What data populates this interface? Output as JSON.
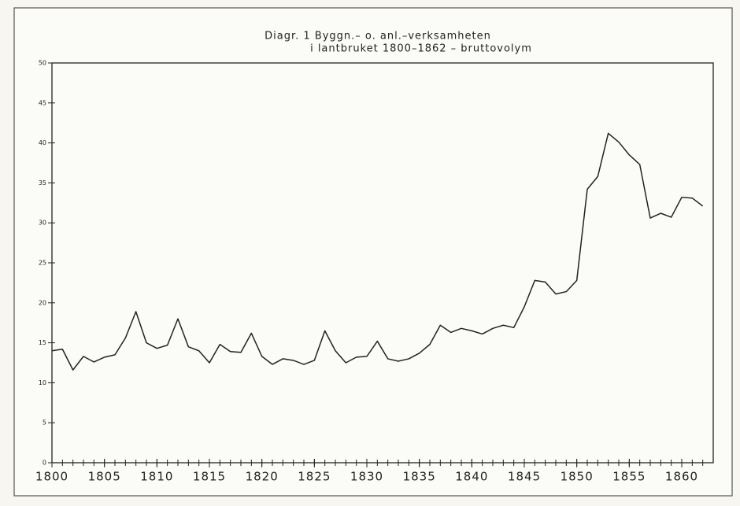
{
  "chart_data": {
    "type": "line",
    "title": "Diagr. 1   Byggn.– o. anl.–verksamheten",
    "subtitle": "i lantbruket 1800–1862 – bruttovolym",
    "x": [
      1800,
      1801,
      1802,
      1803,
      1804,
      1805,
      1806,
      1807,
      1808,
      1809,
      1810,
      1811,
      1812,
      1813,
      1814,
      1815,
      1816,
      1817,
      1818,
      1819,
      1820,
      1821,
      1822,
      1823,
      1824,
      1825,
      1826,
      1827,
      1828,
      1829,
      1830,
      1831,
      1832,
      1833,
      1834,
      1835,
      1836,
      1837,
      1838,
      1839,
      1840,
      1841,
      1842,
      1843,
      1844,
      1845,
      1846,
      1847,
      1848,
      1849,
      1850,
      1851,
      1852,
      1853,
      1854,
      1855,
      1856,
      1857,
      1858,
      1859,
      1860,
      1861,
      1862
    ],
    "series": [
      {
        "color": "#222222",
        "values": [
          14.0,
          14.2,
          11.6,
          13.3,
          12.6,
          13.2,
          13.5,
          15.6,
          18.9,
          15.0,
          14.3,
          14.7,
          18.0,
          14.5,
          14.0,
          12.5,
          14.8,
          13.9,
          13.8,
          16.2,
          13.3,
          12.3,
          13.0,
          12.8,
          12.3,
          12.8,
          16.5,
          14.0,
          12.5,
          13.2,
          13.3,
          15.2,
          13.0,
          12.7,
          13.0,
          13.7,
          14.8,
          17.2,
          16.3,
          16.8,
          16.5,
          16.1,
          16.8,
          17.2,
          16.9,
          19.5,
          22.8,
          22.6,
          21.1,
          21.4,
          22.8,
          34.2,
          35.8,
          41.2,
          40.1,
          38.5,
          37.3,
          30.6,
          31.2,
          30.7,
          33.2,
          33.1,
          32.1
        ]
      }
    ],
    "xlim": [
      1800,
      1863
    ],
    "xticks": [
      1800,
      1805,
      1810,
      1815,
      1820,
      1825,
      1830,
      1835,
      1840,
      1845,
      1850,
      1855,
      1860
    ],
    "ylim": [
      0,
      50
    ],
    "yticks": [
      0,
      5,
      10,
      15,
      20,
      25,
      30,
      35,
      40,
      45,
      50
    ],
    "grid": false
  }
}
